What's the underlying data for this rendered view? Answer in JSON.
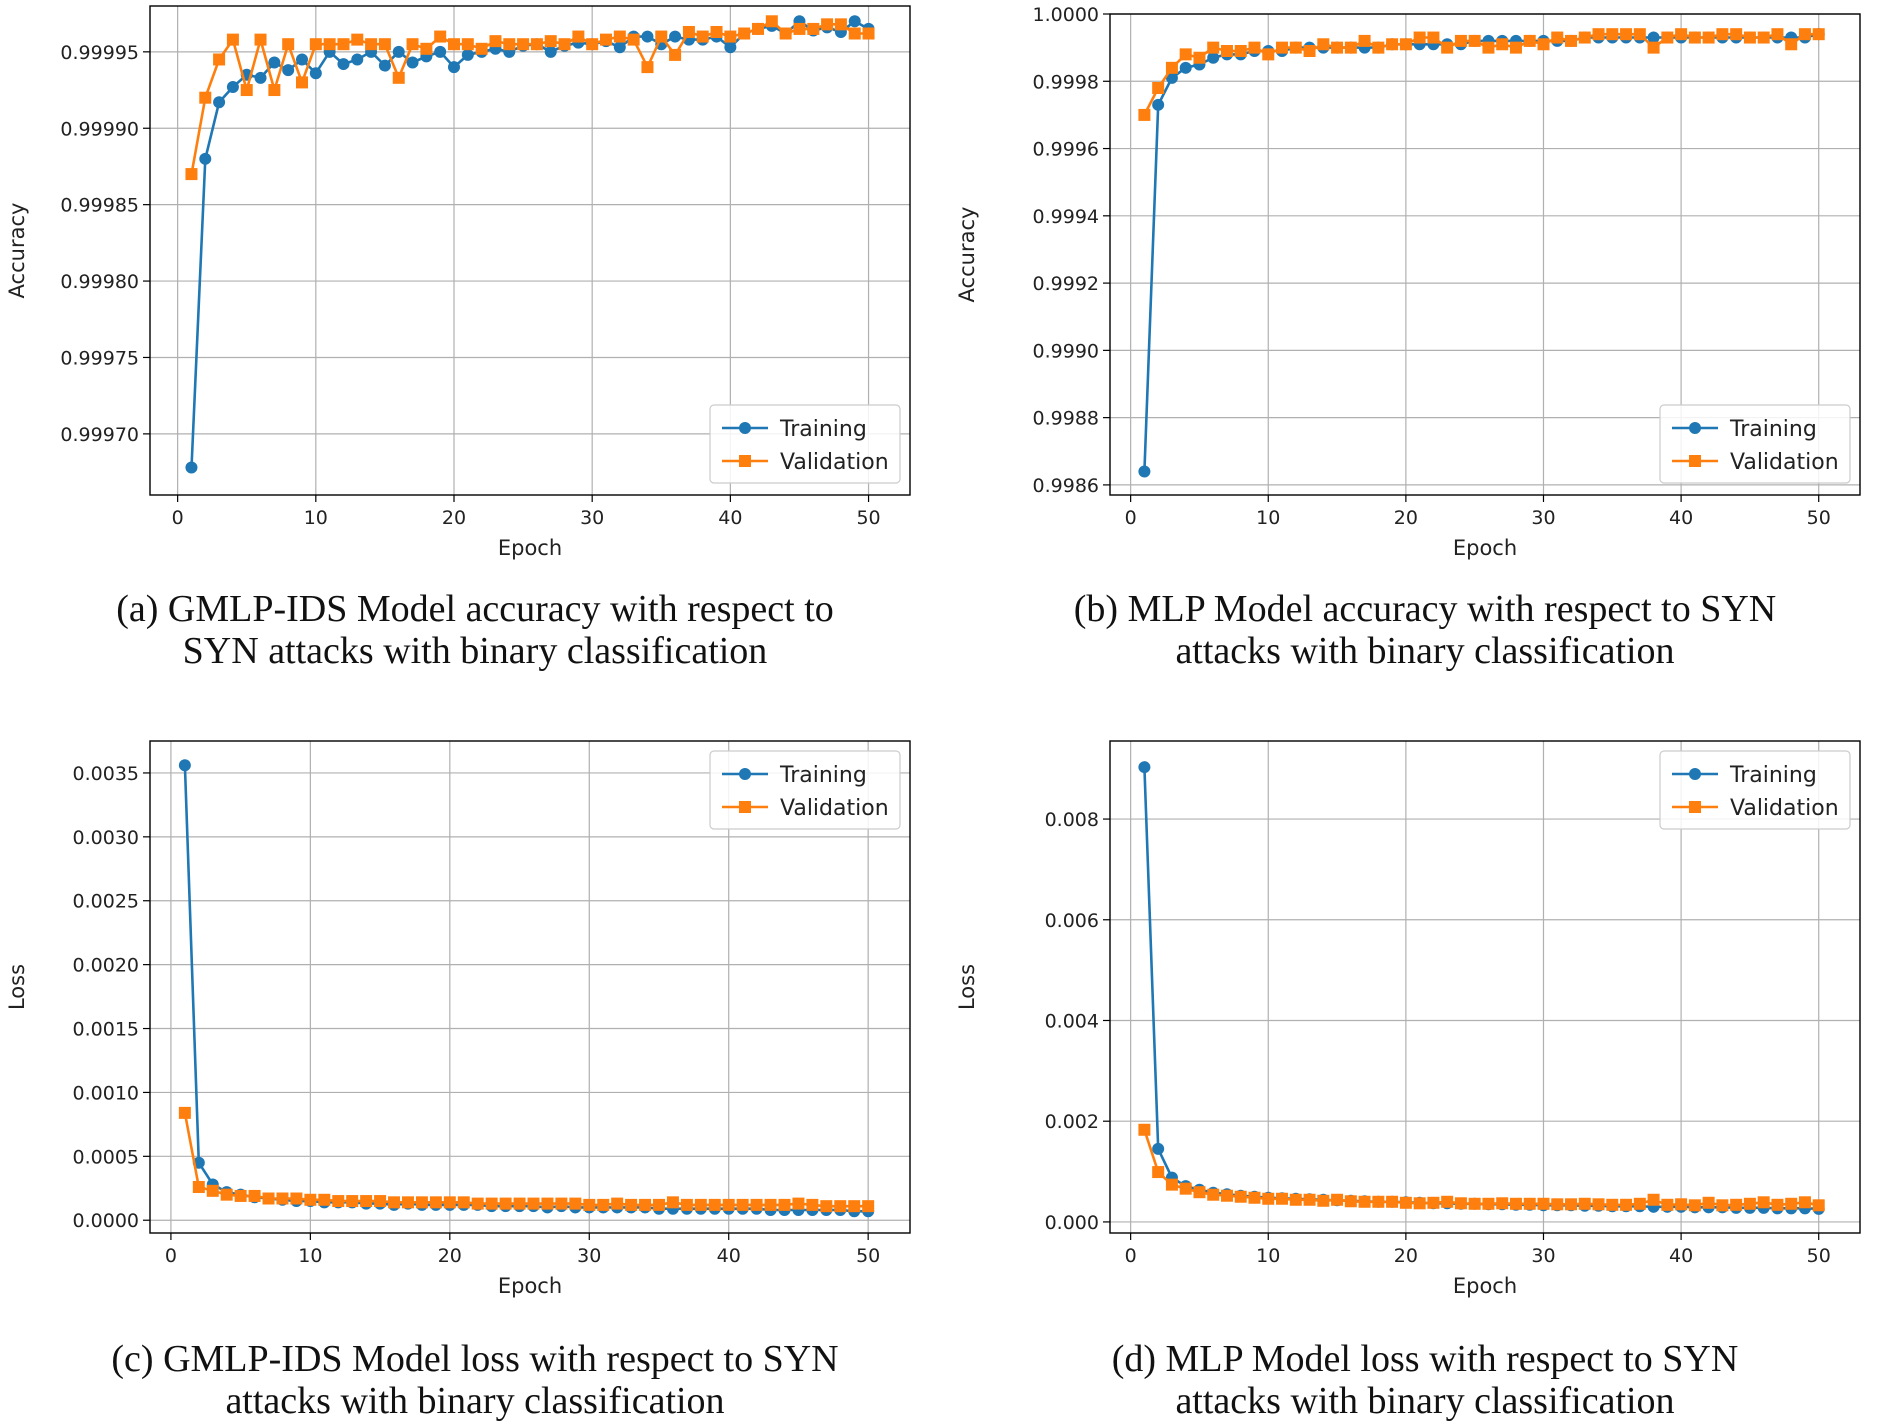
{
  "colors": {
    "training": "#1f77b4",
    "validation": "#ff7f0e",
    "grid": "#b0b0b0",
    "axis": "#000000"
  },
  "chart_data": [
    {
      "id": "a",
      "type": "line",
      "xlabel": "Epoch",
      "ylabel": "Accuracy",
      "xlim": [
        -2,
        53
      ],
      "ylim": [
        0.99966,
        0.99998
      ],
      "xticks": [
        0,
        10,
        20,
        30,
        40,
        50
      ],
      "yticks": [
        0.9997,
        0.99975,
        0.9998,
        0.99985,
        0.9999,
        0.99995
      ],
      "ytick_labels": [
        "0.99970",
        "0.99975",
        "0.99980",
        "0.99985",
        "0.99990",
        "0.99995"
      ],
      "xtick_labels": [
        "0",
        "10",
        "20",
        "30",
        "40",
        "50"
      ],
      "legend_loc": "lower-right",
      "series": [
        {
          "name": "Training",
          "marker": "circle",
          "x": [
            1,
            2,
            3,
            4,
            5,
            6,
            7,
            8,
            9,
            10,
            11,
            12,
            13,
            14,
            15,
            16,
            17,
            18,
            19,
            20,
            21,
            22,
            23,
            24,
            25,
            26,
            27,
            28,
            29,
            30,
            31,
            32,
            33,
            34,
            35,
            36,
            37,
            38,
            39,
            40,
            41,
            42,
            43,
            44,
            45,
            46,
            47,
            48,
            49,
            50
          ],
          "y": [
            0.999678,
            0.99988,
            0.999917,
            0.999927,
            0.999935,
            0.999933,
            0.999943,
            0.999938,
            0.999945,
            0.999936,
            0.99995,
            0.999942,
            0.999945,
            0.99995,
            0.999941,
            0.99995,
            0.999943,
            0.999947,
            0.99995,
            0.99994,
            0.999948,
            0.99995,
            0.999952,
            0.99995,
            0.999954,
            0.999955,
            0.99995,
            0.999954,
            0.999956,
            0.999955,
            0.999957,
            0.999953,
            0.99996,
            0.99996,
            0.999955,
            0.99996,
            0.999958,
            0.999958,
            0.99996,
            0.999953,
            0.999962,
            0.999965,
            0.999967,
            0.999962,
            0.99997,
            0.999964,
            0.999966,
            0.999963,
            0.99997,
            0.999965
          ]
        },
        {
          "name": "Validation",
          "marker": "square",
          "x": [
            1,
            2,
            3,
            4,
            5,
            6,
            7,
            8,
            9,
            10,
            11,
            12,
            13,
            14,
            15,
            16,
            17,
            18,
            19,
            20,
            21,
            22,
            23,
            24,
            25,
            26,
            27,
            28,
            29,
            30,
            31,
            32,
            33,
            34,
            35,
            36,
            37,
            38,
            39,
            40,
            41,
            42,
            43,
            44,
            45,
            46,
            47,
            48,
            49,
            50
          ],
          "y": [
            0.99987,
            0.99992,
            0.999945,
            0.999958,
            0.999925,
            0.999958,
            0.999925,
            0.999955,
            0.99993,
            0.999955,
            0.999955,
            0.999955,
            0.999958,
            0.999955,
            0.999955,
            0.999933,
            0.999955,
            0.999952,
            0.99996,
            0.999955,
            0.999955,
            0.999952,
            0.999957,
            0.999955,
            0.999955,
            0.999955,
            0.999957,
            0.999955,
            0.99996,
            0.999955,
            0.999958,
            0.99996,
            0.999958,
            0.99994,
            0.99996,
            0.999948,
            0.999963,
            0.99996,
            0.999963,
            0.99996,
            0.999962,
            0.999965,
            0.99997,
            0.999962,
            0.999965,
            0.999965,
            0.999968,
            0.999968,
            0.999962,
            0.999962
          ]
        }
      ]
    },
    {
      "id": "b",
      "type": "line",
      "xlabel": "Epoch",
      "ylabel": "Accuracy",
      "xlim": [
        -1.5,
        53
      ],
      "ylim": [
        0.99857,
        1.0
      ],
      "xticks": [
        0,
        10,
        20,
        30,
        40,
        50
      ],
      "yticks": [
        0.9986,
        0.9988,
        0.999,
        0.9992,
        0.9994,
        0.9996,
        0.9998,
        1.0
      ],
      "ytick_labels": [
        "0.9986",
        "0.9988",
        "0.9990",
        "0.9992",
        "0.9994",
        "0.9996",
        "0.9998",
        "1.0000"
      ],
      "xtick_labels": [
        "0",
        "10",
        "20",
        "30",
        "40",
        "50"
      ],
      "legend_loc": "lower-right",
      "series": [
        {
          "name": "Training",
          "marker": "circle",
          "x": [
            1,
            2,
            3,
            4,
            5,
            6,
            7,
            8,
            9,
            10,
            11,
            12,
            13,
            14,
            15,
            16,
            17,
            18,
            19,
            20,
            21,
            22,
            23,
            24,
            25,
            26,
            27,
            28,
            29,
            30,
            31,
            32,
            33,
            34,
            35,
            36,
            37,
            38,
            39,
            40,
            41,
            42,
            43,
            44,
            45,
            46,
            47,
            48,
            49,
            50
          ],
          "y": [
            0.99864,
            0.99973,
            0.99981,
            0.99984,
            0.99985,
            0.99987,
            0.99988,
            0.99988,
            0.99989,
            0.99989,
            0.99989,
            0.9999,
            0.9999,
            0.9999,
            0.9999,
            0.9999,
            0.9999,
            0.9999,
            0.99991,
            0.99991,
            0.99991,
            0.99991,
            0.99991,
            0.99991,
            0.99992,
            0.99992,
            0.99992,
            0.99992,
            0.99992,
            0.99992,
            0.99992,
            0.99992,
            0.99993,
            0.99993,
            0.99993,
            0.99993,
            0.99993,
            0.99993,
            0.99993,
            0.99993,
            0.99993,
            0.99993,
            0.99993,
            0.99993,
            0.99993,
            0.99993,
            0.99993,
            0.99993,
            0.99993,
            0.99994
          ]
        },
        {
          "name": "Validation",
          "marker": "square",
          "x": [
            1,
            2,
            3,
            4,
            5,
            6,
            7,
            8,
            9,
            10,
            11,
            12,
            13,
            14,
            15,
            16,
            17,
            18,
            19,
            20,
            21,
            22,
            23,
            24,
            25,
            26,
            27,
            28,
            29,
            30,
            31,
            32,
            33,
            34,
            35,
            36,
            37,
            38,
            39,
            40,
            41,
            42,
            43,
            44,
            45,
            46,
            47,
            48,
            49,
            50
          ],
          "y": [
            0.9997,
            0.99978,
            0.99984,
            0.99988,
            0.99987,
            0.9999,
            0.99989,
            0.99989,
            0.9999,
            0.99988,
            0.9999,
            0.9999,
            0.99989,
            0.99991,
            0.9999,
            0.9999,
            0.99992,
            0.9999,
            0.99991,
            0.99991,
            0.99993,
            0.99993,
            0.9999,
            0.99992,
            0.99992,
            0.9999,
            0.99991,
            0.9999,
            0.99992,
            0.99991,
            0.99993,
            0.99992,
            0.99993,
            0.99994,
            0.99994,
            0.99994,
            0.99994,
            0.9999,
            0.99993,
            0.99994,
            0.99993,
            0.99993,
            0.99994,
            0.99994,
            0.99993,
            0.99993,
            0.99994,
            0.99991,
            0.99994,
            0.99994
          ]
        }
      ]
    },
    {
      "id": "c",
      "type": "line",
      "xlabel": "Epoch",
      "ylabel": "Loss",
      "xlim": [
        -1.5,
        53
      ],
      "ylim": [
        -0.0001,
        0.00375
      ],
      "xticks": [
        0,
        10,
        20,
        30,
        40,
        50
      ],
      "yticks": [
        0.0,
        0.0005,
        0.001,
        0.0015,
        0.002,
        0.0025,
        0.003,
        0.0035
      ],
      "ytick_labels": [
        "0.0000",
        "0.0005",
        "0.0010",
        "0.0015",
        "0.0020",
        "0.0025",
        "0.0030",
        "0.0035"
      ],
      "xtick_labels": [
        "0",
        "10",
        "20",
        "30",
        "40",
        "50"
      ],
      "legend_loc": "upper-right",
      "series": [
        {
          "name": "Training",
          "marker": "circle",
          "x": [
            1,
            2,
            3,
            4,
            5,
            6,
            7,
            8,
            9,
            10,
            11,
            12,
            13,
            14,
            15,
            16,
            17,
            18,
            19,
            20,
            21,
            22,
            23,
            24,
            25,
            26,
            27,
            28,
            29,
            30,
            31,
            32,
            33,
            34,
            35,
            36,
            37,
            38,
            39,
            40,
            41,
            42,
            43,
            44,
            45,
            46,
            47,
            48,
            49,
            50
          ],
          "y": [
            0.00356,
            0.00045,
            0.00028,
            0.00022,
            0.0002,
            0.00018,
            0.00017,
            0.00016,
            0.00015,
            0.00015,
            0.00014,
            0.00014,
            0.00014,
            0.00013,
            0.00013,
            0.00012,
            0.00013,
            0.00012,
            0.00012,
            0.00012,
            0.00012,
            0.00012,
            0.00011,
            0.00011,
            0.00011,
            0.00011,
            0.0001,
            0.00011,
            0.0001,
            0.0001,
            0.0001,
            0.0001,
            0.0001,
            0.0001,
            9e-05,
            9e-05,
            9e-05,
            9e-05,
            9e-05,
            9e-05,
            9e-05,
            9e-05,
            8e-05,
            8e-05,
            8e-05,
            8e-05,
            8e-05,
            8e-05,
            7e-05,
            7e-05
          ]
        },
        {
          "name": "Validation",
          "marker": "square",
          "x": [
            1,
            2,
            3,
            4,
            5,
            6,
            7,
            8,
            9,
            10,
            11,
            12,
            13,
            14,
            15,
            16,
            17,
            18,
            19,
            20,
            21,
            22,
            23,
            24,
            25,
            26,
            27,
            28,
            29,
            30,
            31,
            32,
            33,
            34,
            35,
            36,
            37,
            38,
            39,
            40,
            41,
            42,
            43,
            44,
            45,
            46,
            47,
            48,
            49,
            50
          ],
          "y": [
            0.00084,
            0.00026,
            0.00023,
            0.0002,
            0.00019,
            0.00019,
            0.00017,
            0.00017,
            0.00017,
            0.00016,
            0.00016,
            0.00015,
            0.00015,
            0.00015,
            0.00015,
            0.00014,
            0.00014,
            0.00014,
            0.00014,
            0.00014,
            0.00014,
            0.00013,
            0.00013,
            0.00013,
            0.00013,
            0.00013,
            0.00013,
            0.00013,
            0.00013,
            0.00012,
            0.00012,
            0.00013,
            0.00012,
            0.00012,
            0.00012,
            0.00014,
            0.00012,
            0.00012,
            0.00012,
            0.00012,
            0.00012,
            0.00012,
            0.00012,
            0.00012,
            0.00013,
            0.00012,
            0.00011,
            0.00011,
            0.00011,
            0.00011
          ]
        }
      ]
    },
    {
      "id": "d",
      "type": "line",
      "xlabel": "Epoch",
      "ylabel": "Loss",
      "xlim": [
        -1.5,
        53
      ],
      "ylim": [
        -0.00022,
        0.00955
      ],
      "xticks": [
        0,
        10,
        20,
        30,
        40,
        50
      ],
      "yticks": [
        0.0,
        0.002,
        0.004,
        0.006,
        0.008
      ],
      "ytick_labels": [
        "0.000",
        "0.002",
        "0.004",
        "0.006",
        "0.008"
      ],
      "xtick_labels": [
        "0",
        "10",
        "20",
        "30",
        "40",
        "50"
      ],
      "legend_loc": "upper-right",
      "series": [
        {
          "name": "Training",
          "marker": "circle",
          "x": [
            1,
            2,
            3,
            4,
            5,
            6,
            7,
            8,
            9,
            10,
            11,
            12,
            13,
            14,
            15,
            16,
            17,
            18,
            19,
            20,
            21,
            22,
            23,
            24,
            25,
            26,
            27,
            28,
            29,
            30,
            31,
            32,
            33,
            34,
            35,
            36,
            37,
            38,
            39,
            40,
            41,
            42,
            43,
            44,
            45,
            46,
            47,
            48,
            49,
            50
          ],
          "y": [
            0.00903,
            0.00145,
            0.00088,
            0.00071,
            0.00064,
            0.00058,
            0.00055,
            0.00052,
            0.0005,
            0.00048,
            0.00047,
            0.00046,
            0.00045,
            0.00044,
            0.00043,
            0.00042,
            0.00041,
            0.0004,
            0.0004,
            0.00039,
            0.00038,
            0.00037,
            0.00037,
            0.00036,
            0.00036,
            0.00035,
            0.00035,
            0.00034,
            0.00034,
            0.00033,
            0.00033,
            0.00033,
            0.00032,
            0.00032,
            0.00031,
            0.00031,
            0.00031,
            0.0003,
            0.0003,
            0.0003,
            0.00029,
            0.00029,
            0.00029,
            0.00028,
            0.00028,
            0.00028,
            0.00027,
            0.00027,
            0.00027,
            0.00026
          ]
        },
        {
          "name": "Validation",
          "marker": "square",
          "x": [
            1,
            2,
            3,
            4,
            5,
            6,
            7,
            8,
            9,
            10,
            11,
            12,
            13,
            14,
            15,
            16,
            17,
            18,
            19,
            20,
            21,
            22,
            23,
            24,
            25,
            26,
            27,
            28,
            29,
            30,
            31,
            32,
            33,
            34,
            35,
            36,
            37,
            38,
            39,
            40,
            41,
            42,
            43,
            44,
            45,
            46,
            47,
            48,
            49,
            50
          ],
          "y": [
            0.00183,
            0.00099,
            0.00074,
            0.00066,
            0.00059,
            0.00054,
            0.00052,
            0.0005,
            0.00048,
            0.00046,
            0.00046,
            0.00044,
            0.00044,
            0.00042,
            0.00044,
            0.00041,
            0.0004,
            0.0004,
            0.0004,
            0.00038,
            0.00037,
            0.00038,
            0.0004,
            0.00037,
            0.00036,
            0.00036,
            0.00037,
            0.00036,
            0.00036,
            0.00036,
            0.00035,
            0.00035,
            0.00036,
            0.00035,
            0.00034,
            0.00034,
            0.00036,
            0.00044,
            0.00034,
            0.00035,
            0.00033,
            0.00038,
            0.00033,
            0.00034,
            0.00036,
            0.00039,
            0.00034,
            0.00036,
            0.00039,
            0.00033
          ]
        }
      ]
    }
  ],
  "captions": {
    "a": [
      "(a) GMLP-IDS Model accuracy with respect to",
      "SYN attacks with binary classification"
    ],
    "b": [
      "(b) MLP Model accuracy with respect to SYN",
      "attacks with binary classification"
    ],
    "c": [
      "(c) GMLP-IDS Model loss with respect to SYN",
      "attacks with binary classification"
    ],
    "d": [
      "(d) MLP Model loss with respect to SYN",
      "attacks with binary classification"
    ]
  }
}
